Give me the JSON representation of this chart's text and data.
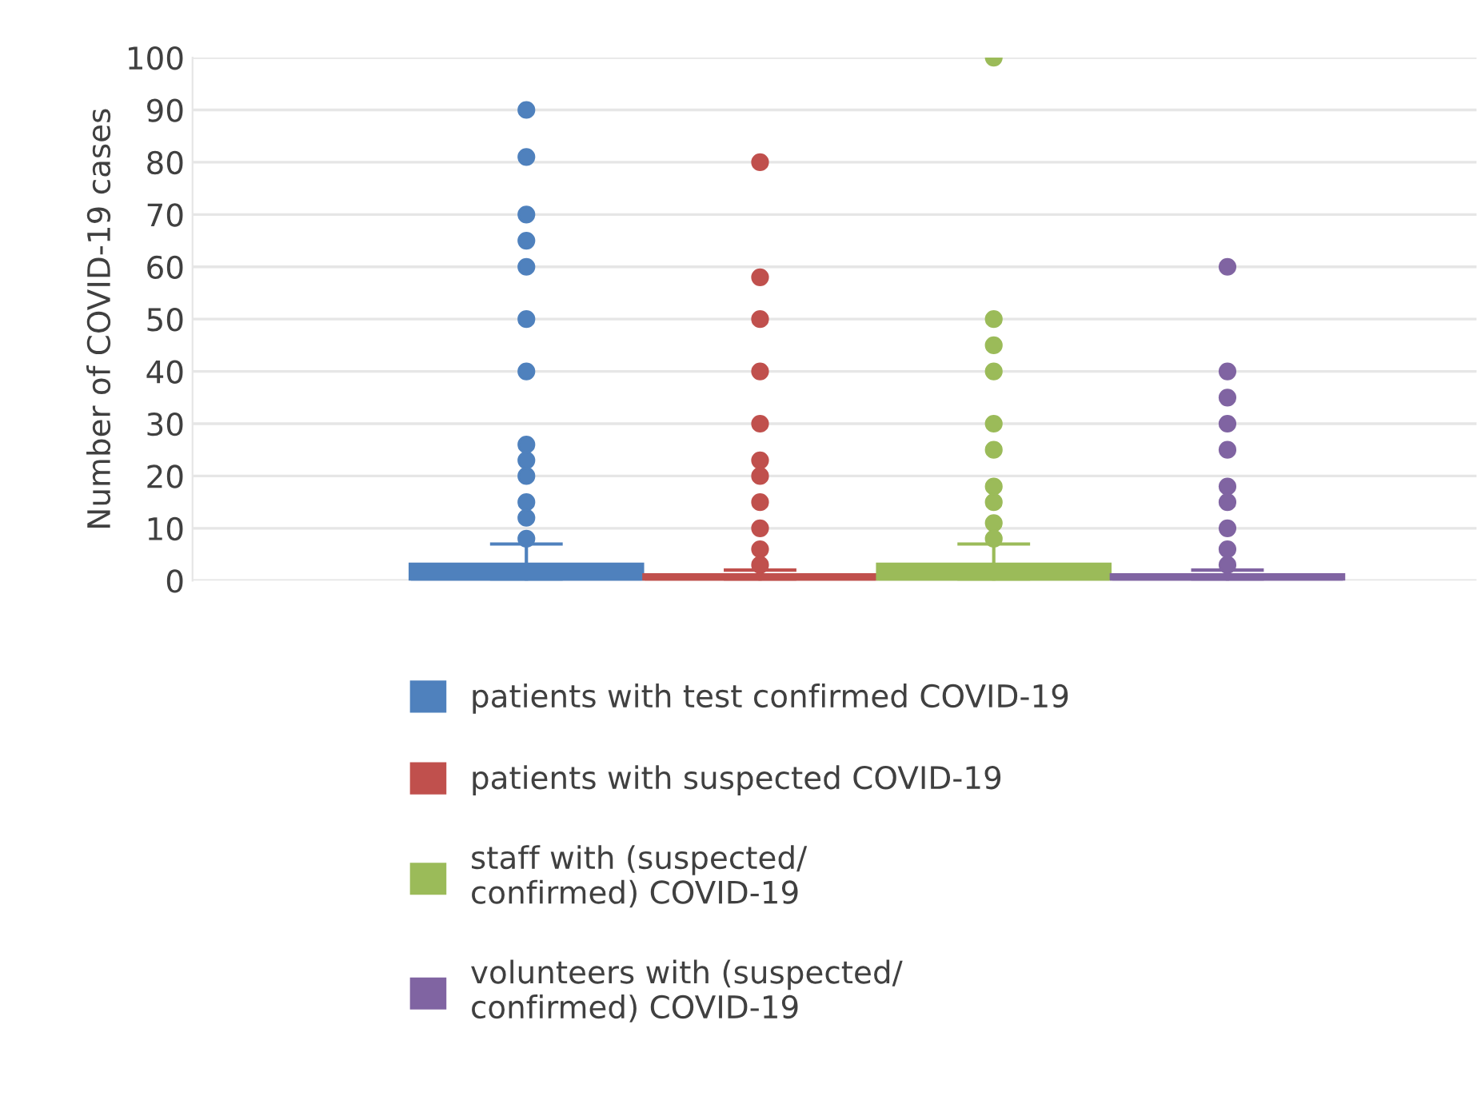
{
  "chart_data": {
    "type": "box",
    "ylabel": "Number of COVID-19 cases",
    "categories": [
      null
    ],
    "ylim": [
      0,
      100
    ],
    "yticks": [
      0,
      10,
      20,
      30,
      40,
      50,
      60,
      70,
      80,
      90,
      100
    ],
    "grid": "y",
    "legend": "bottom",
    "tick_labels": "y",
    "series": [
      {
        "name": "patients with test confirmed COVID-19",
        "color": "#4f81bd",
        "boxes": [
          {
            "low": 0,
            "q1": 0,
            "median": 0,
            "q3": 3,
            "high": 7,
            "outliers": [
              90,
              81,
              70,
              65,
              60,
              50,
              40,
              26,
              23,
              20,
              15,
              12,
              8
            ]
          }
        ]
      },
      {
        "name": "patients with suspected COVID-19",
        "color": "#c0504d",
        "boxes": [
          {
            "low": 0,
            "q1": 0,
            "median": 0,
            "q3": 1,
            "high": 2,
            "outliers": [
              80,
              58,
              50,
              40,
              30,
              23,
              20,
              15,
              10,
              6,
              3
            ]
          }
        ]
      },
      {
        "name": "staff with (suspected/\nconfirmed) COVID-19",
        "color": "#9bbb59",
        "boxes": [
          {
            "low": 0,
            "q1": 0,
            "median": 0,
            "q3": 3,
            "high": 7,
            "outliers": [
              100,
              50,
              45,
              40,
              30,
              25,
              18,
              15,
              11,
              8
            ]
          }
        ]
      },
      {
        "name": "volunteers with (suspected/\nconfirmed) COVID-19",
        "color": "#8064a2",
        "boxes": [
          {
            "low": 0,
            "q1": 0,
            "median": 0,
            "q3": 1,
            "high": 2,
            "outliers": [
              60,
              40,
              35,
              30,
              25,
              18,
              15,
              10,
              6,
              3
            ]
          }
        ]
      }
    ]
  }
}
